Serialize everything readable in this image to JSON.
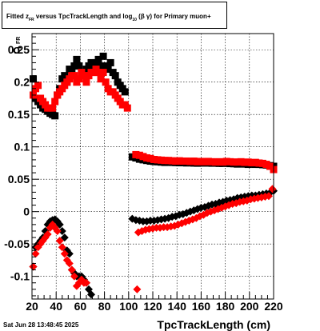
{
  "chart_data": {
    "type": "scatter",
    "title_parts": {
      "p1": "Fitted  z",
      "sub1": "FR",
      "p2": "  versus TpcTrackLength and log",
      "sub2": "10",
      "p3": " (β  γ) for Primary muon+"
    },
    "ylabel": "σ",
    "ylabel_sub": "FR",
    "xlabel": "TpcTrackLength (cm)",
    "xlim": [
      20,
      220
    ],
    "ylim": [
      -0.135,
      0.275
    ],
    "xticks": [
      20,
      40,
      60,
      80,
      100,
      120,
      140,
      160,
      180,
      200,
      220
    ],
    "yticks": [
      -0.1,
      -0.05,
      0,
      0.05,
      0.1,
      0.15,
      0.2,
      0.25
    ],
    "ytick_labels": [
      "-0.1",
      "-0.05",
      "0",
      "0.05",
      "0.1",
      "0.15",
      "0.2",
      "0.25"
    ],
    "grid": true,
    "timestamp": "Sat Jun 28 13:48:45 2025",
    "series": [
      {
        "marker": "square",
        "color": "#000000",
        "x": [
          21,
          23,
          25,
          27,
          29,
          31,
          33,
          35,
          37,
          39,
          41,
          43,
          45,
          47,
          49,
          51,
          53,
          55,
          57,
          59,
          61,
          63,
          65,
          67,
          69,
          71,
          73,
          75,
          77,
          79,
          81,
          83,
          85,
          87,
          89,
          91,
          93,
          95,
          97
        ],
        "y": [
          0.205,
          0.175,
          0.17,
          0.165,
          0.16,
          0.158,
          0.155,
          0.152,
          0.15,
          0.148,
          0.18,
          0.19,
          0.205,
          0.21,
          0.2,
          0.22,
          0.215,
          0.225,
          0.235,
          0.225,
          0.215,
          0.215,
          0.22,
          0.225,
          0.23,
          0.22,
          0.23,
          0.235,
          0.225,
          0.24,
          0.225,
          0.22,
          0.23,
          0.215,
          0.21,
          0.2,
          0.195,
          0.19,
          0.185
        ]
      },
      {
        "marker": "square",
        "color": "#ff0000",
        "x": [
          21,
          23,
          25,
          27,
          29,
          31,
          33,
          35,
          37,
          39,
          41,
          43,
          45,
          47,
          49,
          51,
          53,
          55,
          57,
          59,
          61,
          63,
          65,
          67,
          69,
          71,
          73,
          75,
          77,
          79,
          81,
          83,
          85,
          87,
          89,
          91,
          93,
          95,
          97,
          99
        ],
        "y": [
          0.18,
          0.19,
          0.195,
          0.175,
          0.17,
          0.165,
          0.16,
          0.16,
          0.16,
          0.17,
          0.18,
          0.185,
          0.19,
          0.195,
          0.2,
          0.205,
          0.21,
          0.21,
          0.2,
          0.205,
          0.215,
          0.21,
          0.2,
          0.21,
          0.215,
          0.215,
          0.22,
          0.215,
          0.205,
          0.215,
          0.2,
          0.19,
          0.185,
          0.185,
          0.18,
          0.175,
          0.17,
          0.165,
          0.165,
          0.16
        ]
      },
      {
        "marker": "square",
        "color": "#000000",
        "x": [
          103,
          106,
          109,
          112,
          115,
          118,
          121,
          124,
          127,
          130,
          133,
          136,
          139,
          142,
          145,
          148,
          151,
          154,
          157,
          160,
          163,
          166,
          169,
          172,
          175,
          178,
          181,
          184,
          187,
          190,
          193,
          196,
          199,
          202,
          205,
          208,
          211,
          214,
          217,
          220
        ],
        "y": [
          0.0845,
          0.083,
          0.081,
          0.08,
          0.079,
          0.078,
          0.0775,
          0.077,
          0.0765,
          0.076,
          0.0765,
          0.076,
          0.0758,
          0.0755,
          0.076,
          0.0752,
          0.0758,
          0.075,
          0.0748,
          0.0755,
          0.075,
          0.0755,
          0.0748,
          0.075,
          0.0745,
          0.0745,
          0.075,
          0.0742,
          0.074,
          0.0735,
          0.0738,
          0.0735,
          0.073,
          0.0735,
          0.073,
          0.073,
          0.0725,
          0.072,
          0.071,
          0.07
        ]
      },
      {
        "marker": "square",
        "color": "#ff0000",
        "x": [
          106,
          109,
          112,
          115,
          118,
          121,
          124,
          127,
          130,
          133,
          136,
          139,
          142,
          145,
          148,
          151,
          154,
          157,
          160,
          163,
          166,
          169,
          172,
          175,
          178,
          181,
          184,
          187,
          190,
          193,
          196,
          199,
          202,
          205,
          208,
          211,
          214,
          217,
          220
        ],
        "y": [
          0.088,
          0.087,
          0.085,
          0.083,
          0.082,
          0.0805,
          0.08,
          0.0795,
          0.079,
          0.079,
          0.0785,
          0.078,
          0.0785,
          0.078,
          0.078,
          0.0775,
          0.078,
          0.077,
          0.0775,
          0.077,
          0.0775,
          0.077,
          0.0765,
          0.077,
          0.0765,
          0.0775,
          0.077,
          0.0765,
          0.0765,
          0.077,
          0.076,
          0.0765,
          0.0755,
          0.076,
          0.075,
          0.0745,
          0.073,
          0.07,
          0.065
        ]
      },
      {
        "marker": "diamond",
        "color": "#000000",
        "x": [
          21,
          23,
          25,
          27,
          29,
          31,
          33,
          35,
          37,
          39,
          41,
          43,
          45,
          47,
          49,
          51,
          53,
          55,
          57,
          59,
          61,
          63,
          65,
          67,
          69
        ],
        "y": [
          -0.085,
          -0.055,
          -0.05,
          -0.045,
          -0.04,
          -0.03,
          -0.02,
          -0.015,
          -0.013,
          -0.012,
          -0.015,
          -0.02,
          -0.03,
          -0.04,
          -0.06,
          -0.065,
          -0.09,
          -0.095,
          -0.1,
          -0.1,
          -0.1,
          -0.105,
          -0.11,
          -0.12,
          -0.128
        ]
      },
      {
        "marker": "diamond",
        "color": "#ff0000",
        "x": [
          21,
          23,
          25,
          27,
          29,
          31,
          33,
          35,
          37,
          39,
          41,
          43,
          45,
          47,
          49,
          51,
          53,
          55,
          57,
          59,
          61,
          63,
          65
        ],
        "y": [
          -0.085,
          -0.065,
          -0.055,
          -0.05,
          -0.045,
          -0.04,
          -0.035,
          -0.025,
          -0.02,
          -0.025,
          -0.03,
          -0.045,
          -0.055,
          -0.065,
          -0.075,
          -0.08,
          -0.09,
          -0.1,
          -0.115,
          -0.11,
          -0.105,
          -0.11,
          -0.11
        ]
      },
      {
        "marker": "diamond",
        "color": "#000000",
        "x": [
          103,
          106,
          109,
          112,
          115,
          118,
          121,
          124,
          127,
          130,
          133,
          136,
          139,
          142,
          145,
          148,
          151,
          154,
          157,
          160,
          163,
          166,
          169,
          172,
          175,
          178,
          181,
          184,
          187,
          190,
          193,
          196,
          199,
          202,
          205,
          208,
          211,
          214,
          217,
          220
        ],
        "y": [
          -0.011,
          -0.013,
          -0.014,
          -0.015,
          -0.015,
          -0.014,
          -0.014,
          -0.013,
          -0.012,
          -0.011,
          -0.01,
          -0.008,
          -0.007,
          -0.005,
          -0.004,
          -0.002,
          0,
          0.002,
          0.004,
          0.006,
          0.007,
          0.009,
          0.011,
          0.012,
          0.014,
          0.015,
          0.017,
          0.018,
          0.019,
          0.021,
          0.022,
          0.023,
          0.024,
          0.025,
          0.025,
          0.026,
          0.027,
          0.028,
          0.029,
          0.032
        ]
      },
      {
        "marker": "diamond",
        "color": "#ff0000",
        "x": [
          108,
          111,
          114,
          117,
          120,
          123,
          126,
          129,
          132,
          135,
          138,
          141,
          144,
          147,
          150,
          153,
          156,
          159,
          162,
          165,
          168,
          171,
          174,
          177,
          180,
          183,
          186,
          189,
          192,
          195,
          198,
          201,
          204,
          207,
          210,
          213,
          216,
          219
        ],
        "y": [
          -0.032,
          -0.03,
          -0.028,
          -0.027,
          -0.026,
          -0.025,
          -0.025,
          -0.024,
          -0.024,
          -0.023,
          -0.022,
          -0.02,
          -0.018,
          -0.016,
          -0.014,
          -0.012,
          -0.01,
          -0.007,
          -0.005,
          -0.002,
          0,
          0.002,
          0.004,
          0.006,
          0.008,
          0.01,
          0.012,
          0.013,
          0.015,
          0.016,
          0.017,
          0.019,
          0.02,
          0.021,
          0.022,
          0.023,
          0.024,
          0.035
        ]
      },
      {
        "marker": "diamond",
        "color": "#ff0000",
        "x": [
          107
        ],
        "y": [
          -0.12
        ]
      }
    ]
  }
}
